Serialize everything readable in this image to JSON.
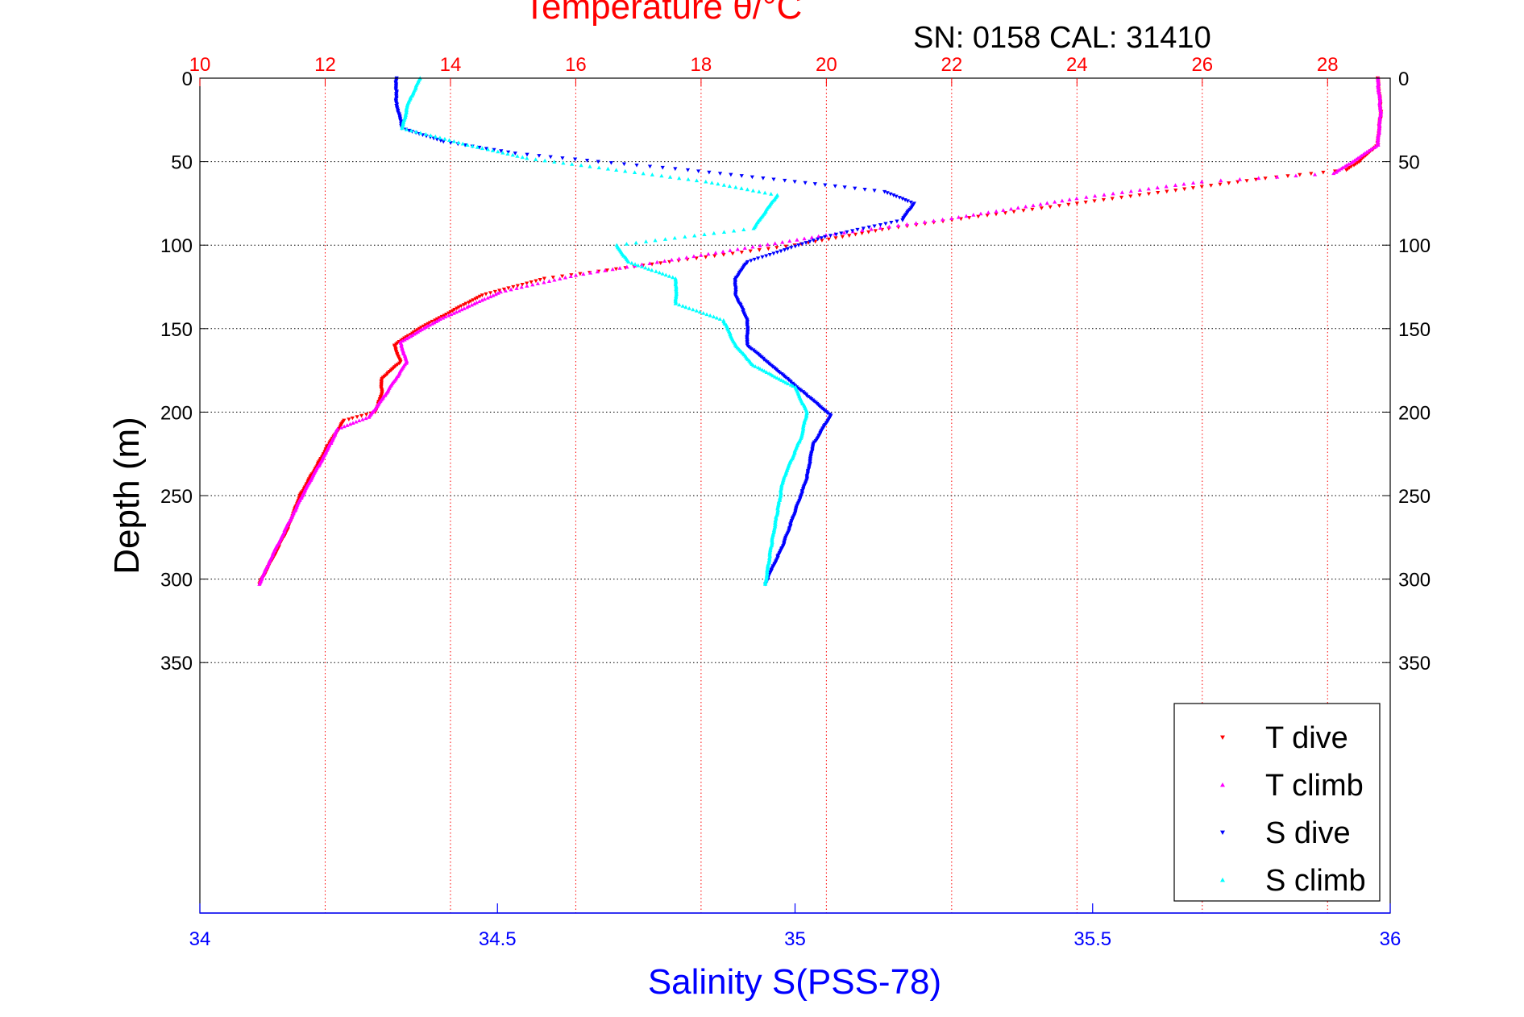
{
  "header": {
    "serial_label": "SN: 0158  CAL: 31410"
  },
  "chart_data": {
    "type": "scatter",
    "title": "Temperature θ/°C",
    "ylabel": "Depth (m)",
    "xlabel": "Salinity S(PSS-78)",
    "axes": {
      "temperature": {
        "label": "Temperature θ/°C",
        "range": [
          10,
          29
        ],
        "ticks": [
          "10",
          "12",
          "14",
          "16",
          "18",
          "20",
          "22",
          "24",
          "26",
          "28"
        ],
        "color": "#ff0000"
      },
      "salinity": {
        "label": "Salinity S(PSS-78)",
        "range": [
          34,
          36
        ],
        "ticks": [
          "34",
          "34.5",
          "35",
          "35.5",
          "36"
        ],
        "color": "#0000ff"
      },
      "depth": {
        "label": "Depth (m)",
        "range": [
          0,
          500
        ],
        "reversed": true,
        "ticks": [
          "0",
          "50",
          "100",
          "150",
          "200",
          "250",
          "300",
          "350"
        ]
      }
    },
    "grid": true,
    "legend_position": "bottom-right",
    "series": [
      {
        "name": "T dive",
        "axis": "temperature",
        "color": "#ff0000",
        "marker": "triangle-down",
        "points": [
          [
            28.8,
            0
          ],
          [
            28.85,
            20
          ],
          [
            28.8,
            40
          ],
          [
            28.5,
            50
          ],
          [
            28.3,
            55
          ],
          [
            27,
            60
          ],
          [
            25,
            70
          ],
          [
            23,
            80
          ],
          [
            21,
            90
          ],
          [
            19.5,
            100
          ],
          [
            17.5,
            110
          ],
          [
            15.5,
            120
          ],
          [
            14.5,
            130
          ],
          [
            13.5,
            150
          ],
          [
            13.1,
            160
          ],
          [
            13.2,
            170
          ],
          [
            12.9,
            180
          ],
          [
            12.9,
            190
          ],
          [
            12.8,
            200
          ],
          [
            12.3,
            205
          ],
          [
            12.05,
            220
          ],
          [
            11.9,
            230
          ],
          [
            11.6,
            250
          ],
          [
            11.4,
            270
          ],
          [
            11.2,
            285
          ],
          [
            10.95,
            303
          ]
        ]
      },
      {
        "name": "T climb",
        "axis": "temperature",
        "color": "#ff00ff",
        "marker": "triangle-up",
        "points": [
          [
            28.8,
            0
          ],
          [
            28.85,
            20
          ],
          [
            28.8,
            40
          ],
          [
            28.4,
            50
          ],
          [
            28.1,
            57
          ],
          [
            26,
            62
          ],
          [
            24,
            72
          ],
          [
            22,
            84
          ],
          [
            20,
            94
          ],
          [
            18,
            106
          ],
          [
            16,
            118
          ],
          [
            14.8,
            128
          ],
          [
            13.8,
            145
          ],
          [
            13.2,
            158
          ],
          [
            13.3,
            170
          ],
          [
            12.95,
            190
          ],
          [
            12.7,
            203
          ],
          [
            12.2,
            210
          ],
          [
            12,
            225
          ],
          [
            11.7,
            245
          ],
          [
            11.5,
            260
          ],
          [
            11.3,
            275
          ],
          [
            11.1,
            290
          ],
          [
            10.95,
            303
          ]
        ]
      },
      {
        "name": "S dive",
        "axis": "salinity",
        "color": "#0000ff",
        "marker": "triangle-down",
        "points": [
          [
            34.33,
            0
          ],
          [
            34.33,
            15
          ],
          [
            34.34,
            30
          ],
          [
            34.41,
            38
          ],
          [
            34.53,
            45
          ],
          [
            34.67,
            50
          ],
          [
            34.82,
            55
          ],
          [
            35.0,
            62
          ],
          [
            35.15,
            68
          ],
          [
            35.2,
            75
          ],
          [
            35.18,
            85
          ],
          [
            35.05,
            95
          ],
          [
            34.92,
            110
          ],
          [
            34.9,
            120
          ],
          [
            34.9,
            130
          ],
          [
            34.92,
            145
          ],
          [
            34.92,
            160
          ],
          [
            34.97,
            175
          ],
          [
            35.02,
            190
          ],
          [
            35.06,
            202
          ],
          [
            35.03,
            220
          ],
          [
            35.02,
            240
          ],
          [
            35.0,
            260
          ],
          [
            34.98,
            280
          ],
          [
            34.96,
            295
          ],
          [
            34.95,
            303
          ]
        ]
      },
      {
        "name": "S climb",
        "axis": "salinity",
        "color": "#00ffff",
        "marker": "triangle-up",
        "points": [
          [
            34.37,
            0
          ],
          [
            34.35,
            15
          ],
          [
            34.34,
            30
          ],
          [
            34.45,
            40
          ],
          [
            34.55,
            48
          ],
          [
            34.7,
            55
          ],
          [
            34.85,
            62
          ],
          [
            34.97,
            70
          ],
          [
            34.95,
            80
          ],
          [
            34.93,
            90
          ],
          [
            34.7,
            100
          ],
          [
            34.72,
            110
          ],
          [
            34.8,
            120
          ],
          [
            34.8,
            135
          ],
          [
            34.88,
            145
          ],
          [
            34.9,
            160
          ],
          [
            34.93,
            172
          ],
          [
            35.0,
            185
          ],
          [
            35.02,
            200
          ],
          [
            35.01,
            215
          ],
          [
            34.98,
            240
          ],
          [
            34.97,
            260
          ],
          [
            34.96,
            280
          ],
          [
            34.95,
            303
          ]
        ]
      }
    ]
  }
}
